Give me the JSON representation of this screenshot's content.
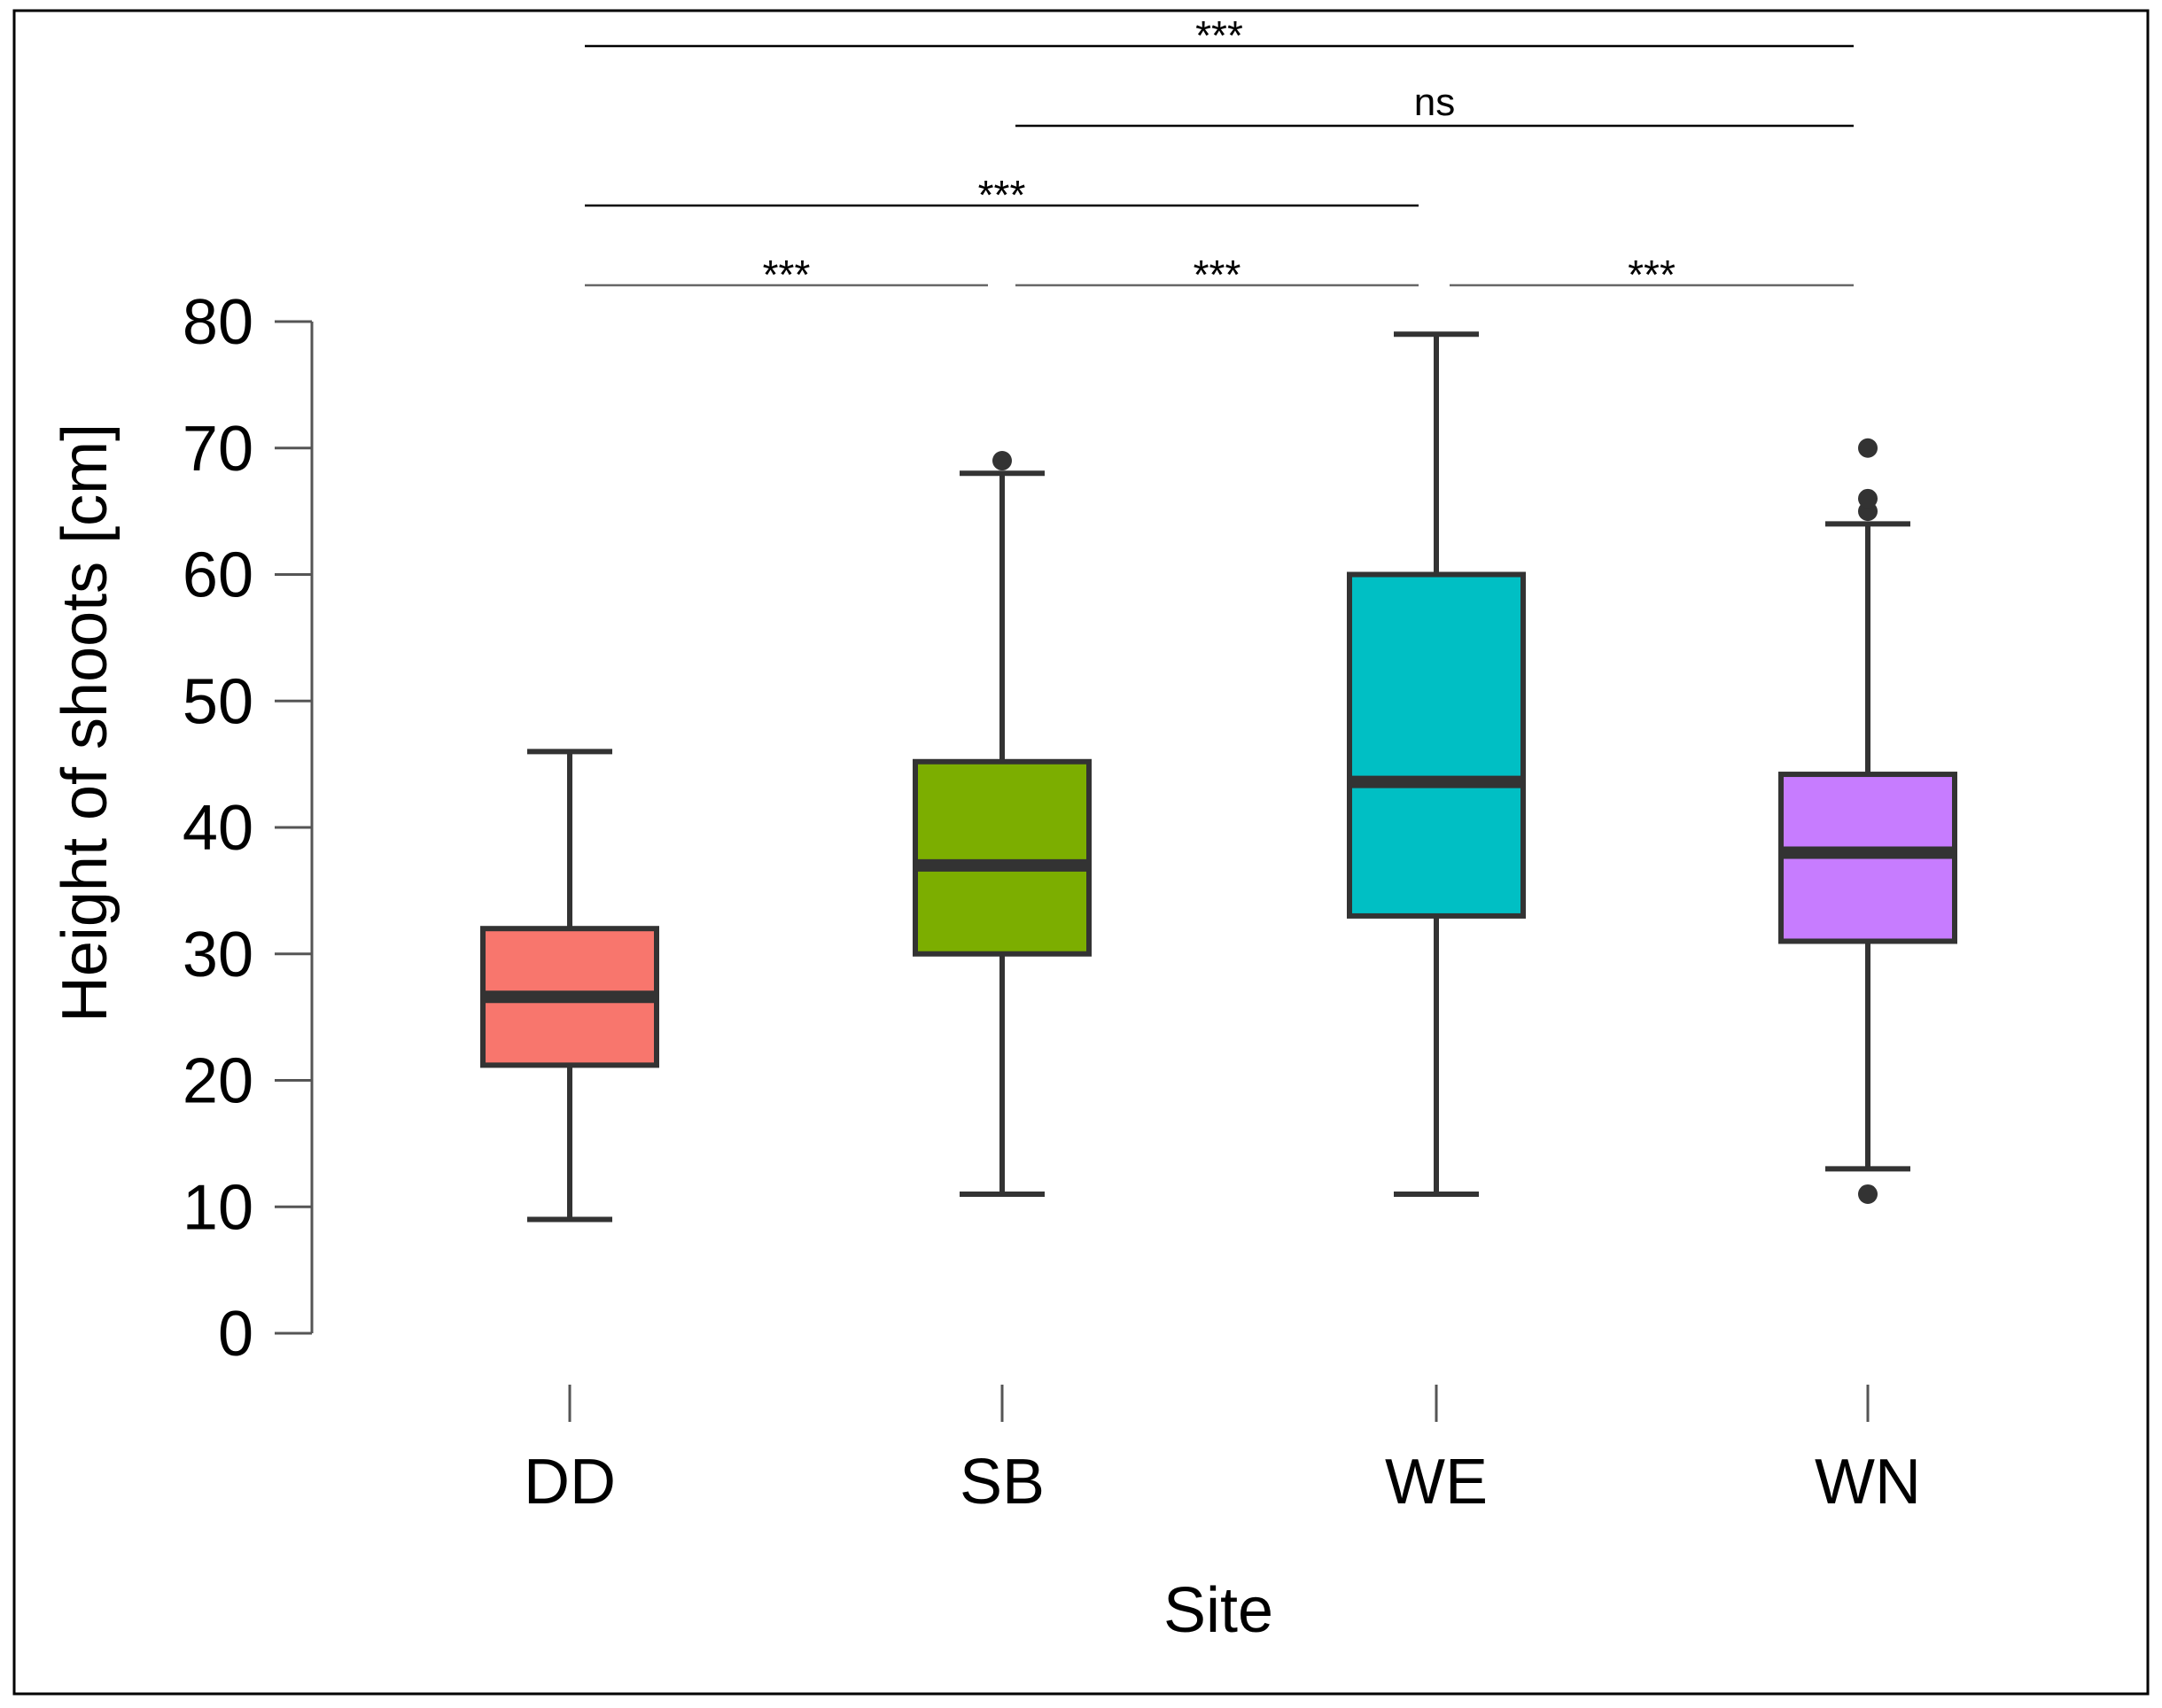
{
  "chart_data": {
    "type": "box",
    "title": "",
    "xlabel": "Site",
    "ylabel": "Height of shoots [cm]",
    "ylim": [
      0,
      80
    ],
    "yticks": [
      0,
      10,
      20,
      30,
      40,
      50,
      60,
      70,
      80
    ],
    "grid": false,
    "categories": [
      "DD",
      "SB",
      "WE",
      "WN"
    ],
    "boxes": [
      {
        "name": "DD",
        "color": "#f8766d",
        "whisker_low": 9,
        "q1": 21.2,
        "median": 26.6,
        "q3": 32,
        "whisker_high": 46,
        "outliers": []
      },
      {
        "name": "SB",
        "color": "#7cae00",
        "whisker_low": 11,
        "q1": 30,
        "median": 37,
        "q3": 45.2,
        "whisker_high": 68,
        "outliers": [
          69
        ]
      },
      {
        "name": "WE",
        "color": "#00bfc4",
        "whisker_low": 11,
        "q1": 33,
        "median": 43.6,
        "q3": 60,
        "whisker_high": 79,
        "outliers": []
      },
      {
        "name": "WN",
        "color": "#c77cff",
        "whisker_low": 13,
        "q1": 31,
        "median": 38,
        "q3": 44.2,
        "whisker_high": 64,
        "outliers": [
          11,
          65,
          66,
          70
        ]
      }
    ],
    "comparisons": [
      {
        "from": "DD",
        "to": "SB",
        "label": "***"
      },
      {
        "from": "SB",
        "to": "WE",
        "label": "***"
      },
      {
        "from": "WE",
        "to": "WN",
        "label": "***"
      },
      {
        "from": "DD",
        "to": "WE",
        "label": "***"
      },
      {
        "from": "SB",
        "to": "WN",
        "label": "ns"
      },
      {
        "from": "DD",
        "to": "WN",
        "label": "***"
      }
    ]
  }
}
